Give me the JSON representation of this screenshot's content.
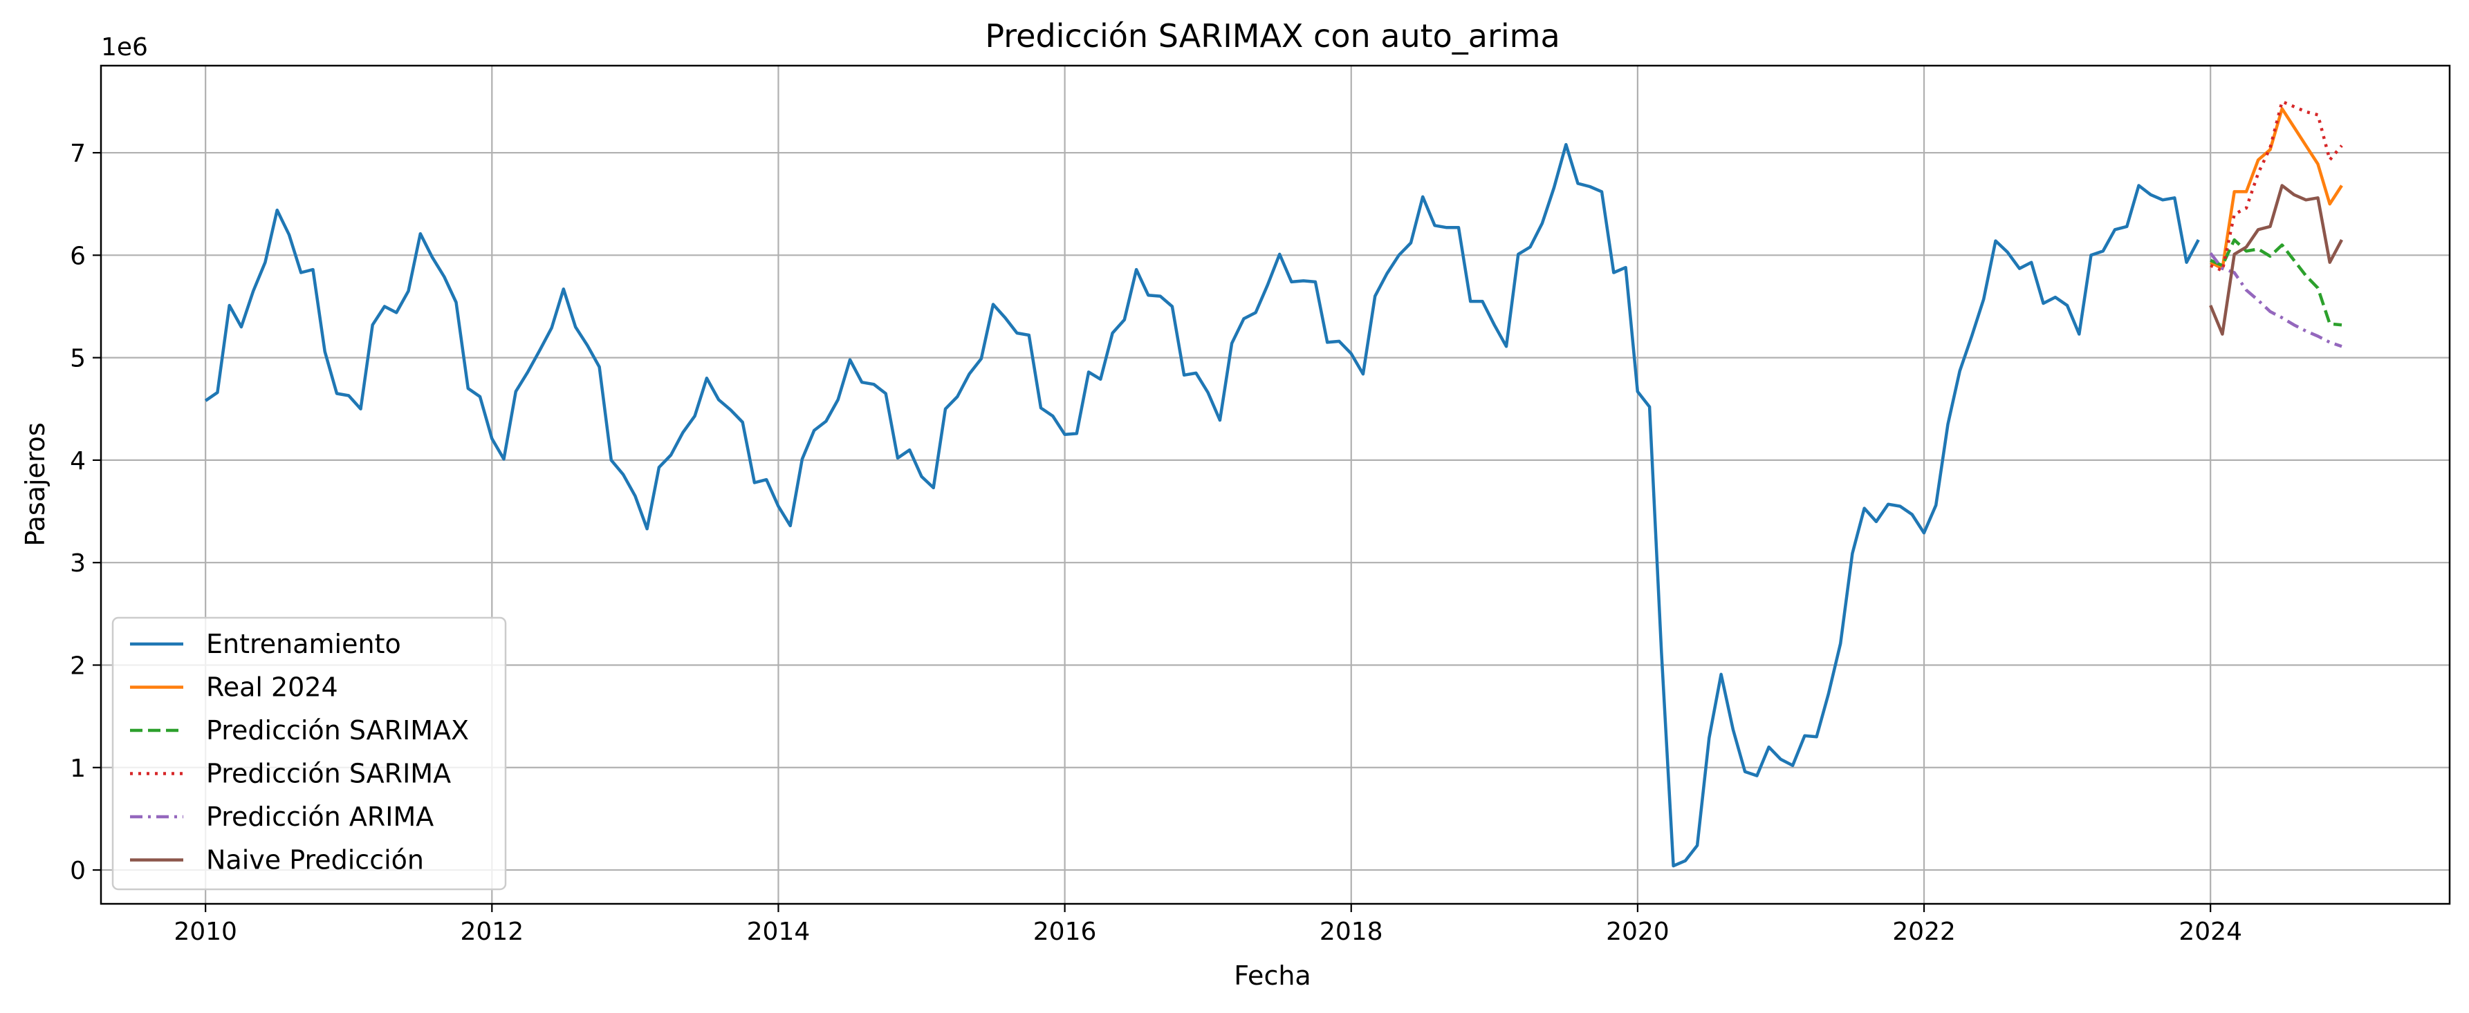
{
  "chart_data": {
    "type": "line",
    "title": "Predicción SARIMAX con auto_arima",
    "xlabel": "Fecha",
    "ylabel": "Pasajeros",
    "y_offset_label": "1e6",
    "xlim": [
      2009.27,
      2025.67
    ],
    "ylim": [
      -0.33,
      7.85
    ],
    "x_ticks": [
      2010,
      2012,
      2014,
      2016,
      2018,
      2020,
      2022,
      2024
    ],
    "x_tick_labels": [
      "2010",
      "2012",
      "2014",
      "2016",
      "2018",
      "2020",
      "2022",
      "2024"
    ],
    "y_ticks": [
      0,
      1,
      2,
      3,
      4,
      5,
      6,
      7
    ],
    "y_tick_labels": [
      "0",
      "1",
      "2",
      "3",
      "4",
      "5",
      "6",
      "7"
    ],
    "grid": true,
    "legend_position": "lower-left",
    "series": [
      {
        "name": "Entrenamiento",
        "color": "#1f77b4",
        "style": "solid",
        "x_start": 2010.0,
        "x_step": 0.08333,
        "values": [
          4.58,
          4.66,
          5.51,
          5.3,
          5.65,
          5.93,
          6.44,
          6.2,
          5.83,
          5.86,
          5.06,
          4.65,
          4.63,
          4.5,
          5.32,
          5.5,
          5.44,
          5.65,
          6.21,
          5.98,
          5.79,
          5.54,
          4.7,
          4.62,
          4.21,
          4.01,
          4.67,
          4.86,
          5.07,
          5.29,
          5.67,
          5.3,
          5.12,
          4.91,
          4.0,
          3.86,
          3.65,
          3.33,
          3.93,
          4.05,
          4.27,
          4.43,
          4.8,
          4.59,
          4.49,
          4.37,
          3.78,
          3.81,
          3.55,
          3.36,
          4.01,
          4.29,
          4.38,
          4.59,
          4.98,
          4.76,
          4.74,
          4.65,
          4.02,
          4.1,
          3.84,
          3.73,
          4.5,
          4.62,
          4.84,
          4.99,
          5.52,
          5.39,
          5.24,
          5.22,
          4.51,
          4.43,
          4.25,
          4.26,
          4.86,
          4.79,
          5.24,
          5.37,
          5.86,
          5.61,
          5.6,
          5.5,
          4.83,
          4.85,
          4.66,
          4.39,
          5.14,
          5.38,
          5.44,
          5.71,
          6.01,
          5.74,
          5.75,
          5.74,
          5.15,
          5.16,
          5.04,
          4.84,
          5.6,
          5.82,
          6.0,
          6.12,
          6.57,
          6.29,
          6.27,
          6.27,
          5.55,
          5.55,
          5.32,
          5.11,
          6.01,
          6.08,
          6.31,
          6.66,
          7.08,
          6.7,
          6.67,
          6.62,
          5.83,
          5.88,
          4.67,
          4.52,
          2.13,
          0.04,
          0.09,
          0.24,
          1.29,
          1.91,
          1.37,
          0.96,
          0.92,
          1.2,
          1.08,
          1.02,
          1.31,
          1.3,
          1.72,
          2.21,
          3.09,
          3.53,
          3.4,
          3.57,
          3.55,
          3.47,
          3.29,
          3.56,
          4.35,
          4.87,
          5.21,
          5.57,
          6.14,
          6.03,
          5.87,
          5.93,
          5.53,
          5.59,
          5.51,
          5.23,
          6.0,
          6.04,
          6.25,
          6.28,
          6.68,
          6.59,
          6.54,
          6.56,
          5.93,
          6.15
        ]
      },
      {
        "name": "Real 2024",
        "color": "#ff7f0e",
        "style": "solid",
        "x_start": 2024.0,
        "x_step": 0.08333,
        "values": [
          5.93,
          5.87,
          6.62,
          6.62,
          6.93,
          7.03,
          7.43,
          7.25,
          7.07,
          6.89,
          6.5,
          6.68
        ]
      },
      {
        "name": "Predicción SARIMAX",
        "color": "#2ca02c",
        "style": "dashed",
        "x_start": 2024.0,
        "x_step": 0.08333,
        "values": [
          5.95,
          5.9,
          6.15,
          6.04,
          6.06,
          5.99,
          6.1,
          5.95,
          5.8,
          5.68,
          5.33,
          5.32
        ]
      },
      {
        "name": "Predicción SARIMA",
        "color": "#d62728",
        "style": "dotted",
        "x_start": 2024.0,
        "x_step": 0.08333,
        "values": [
          5.9,
          5.85,
          6.4,
          6.46,
          6.8,
          7.05,
          7.5,
          7.45,
          7.4,
          7.37,
          6.93,
          7.07
        ]
      },
      {
        "name": "Predicción ARIMA",
        "color": "#9467bd",
        "style": "dashdot",
        "x_start": 2024.0,
        "x_step": 0.08333,
        "values": [
          6.02,
          5.87,
          5.83,
          5.66,
          5.56,
          5.45,
          5.39,
          5.32,
          5.26,
          5.21,
          5.15,
          5.11
        ]
      },
      {
        "name": "Naive Predicción",
        "color": "#8c564b",
        "style": "solid",
        "x_start": 2024.0,
        "x_step": 0.08333,
        "values": [
          5.51,
          5.23,
          6.01,
          6.08,
          6.25,
          6.28,
          6.68,
          6.59,
          6.54,
          6.56,
          5.93,
          6.15
        ]
      }
    ]
  }
}
